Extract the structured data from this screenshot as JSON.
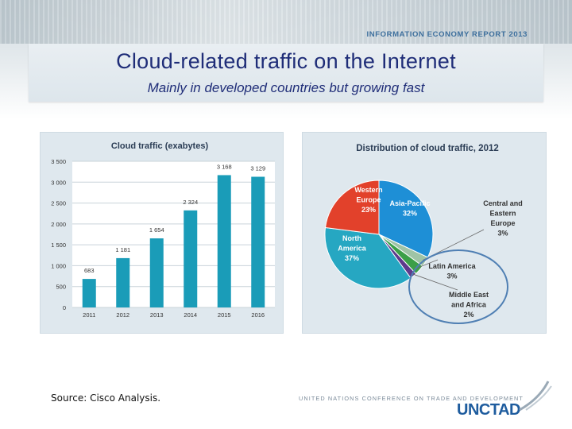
{
  "header": {
    "report_tag": "INFORMATION ECONOMY REPORT 2013",
    "title": "Cloud-related traffic on the Internet",
    "subtitle": "Mainly in developed countries but growing fast"
  },
  "footer": {
    "source": "Source: Cisco Analysis.",
    "org_full": "UNITED NATIONS CONFERENCE ON TRADE AND DEVELOPMENT",
    "org_logo": "UNCTAD"
  },
  "chart_data": [
    {
      "type": "bar",
      "title": "Cloud traffic (exabytes)",
      "categories": [
        "2011",
        "2012",
        "2013",
        "2014",
        "2015",
        "2016"
      ],
      "values": [
        683,
        1181,
        1654,
        2324,
        3168,
        3129
      ],
      "value_labels": [
        "683",
        "1 181",
        "1 654",
        "2 324",
        "3 168",
        "3 129"
      ],
      "ylim": [
        0,
        3500
      ],
      "yticks": [
        0,
        500,
        1000,
        1500,
        2000,
        2500,
        3000,
        3500
      ],
      "ytick_labels": [
        "0",
        "500",
        "1 000",
        "1 500",
        "2 000",
        "2 500",
        "3 000",
        "3 500"
      ],
      "grid": true,
      "color": "#1a9cb8"
    },
    {
      "type": "pie",
      "title": "Distribution of cloud traffic, 2012",
      "slices": [
        {
          "label_lines": [
            "Asia-Pacific",
            "32%"
          ],
          "value": 32,
          "color": "#1e8fd6"
        },
        {
          "label_lines": [
            "Central and",
            "Eastern",
            "Europe",
            "3%"
          ],
          "value": 3,
          "color": "#9fc4a6"
        },
        {
          "label_lines": [
            "Latin America",
            "3%"
          ],
          "value": 3,
          "color": "#3b9f48"
        },
        {
          "label_lines": [
            "Middle East",
            "and Africa",
            "2%"
          ],
          "value": 2,
          "color": "#5e3a8c"
        },
        {
          "label_lines": [
            "North",
            "America",
            "37%"
          ],
          "value": 37,
          "color": "#26a7c2"
        },
        {
          "label_lines": [
            "Western",
            "Europe",
            "23%"
          ],
          "value": 23,
          "color": "#e2412b"
        }
      ]
    }
  ]
}
